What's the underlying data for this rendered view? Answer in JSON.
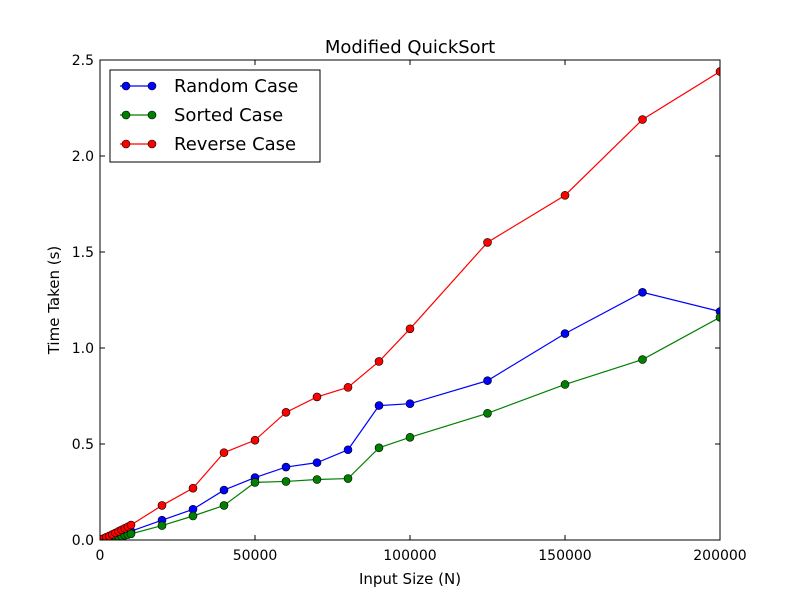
{
  "chart_data": {
    "type": "line",
    "title": "Modified QuickSort",
    "xlabel": "Input Size (N)",
    "ylabel": "Time Taken (s)",
    "xlim": [
      0,
      200000
    ],
    "ylim": [
      0,
      2.5
    ],
    "x_ticks": [
      0,
      50000,
      100000,
      150000,
      200000
    ],
    "x_tick_labels": [
      "0",
      "50000",
      "100000",
      "150000",
      "200000"
    ],
    "y_ticks": [
      0,
      0.5,
      1.0,
      1.5,
      2.0,
      2.5
    ],
    "y_tick_labels": [
      "0.0",
      "0.5",
      "1.0",
      "1.5",
      "2.0",
      "2.5"
    ],
    "grid": false,
    "legend_position": "top-left",
    "x": [
      1000,
      2000,
      3000,
      4000,
      5000,
      6000,
      7000,
      8000,
      9000,
      10000,
      20000,
      30000,
      40000,
      50000,
      60000,
      70000,
      80000,
      90000,
      100000,
      125000,
      150000,
      175000,
      200000
    ],
    "series": [
      {
        "name": "Random Case",
        "color": "#0000ff",
        "values": [
          0.004,
          0.008,
          0.012,
          0.016,
          0.021,
          0.026,
          0.031,
          0.036,
          0.041,
          0.046,
          0.103,
          0.16,
          0.26,
          0.325,
          0.38,
          0.403,
          0.47,
          0.7,
          0.71,
          0.83,
          1.075,
          1.29,
          1.19
        ]
      },
      {
        "name": "Sorted Case",
        "color": "#008000",
        "values": [
          0.003,
          0.006,
          0.009,
          0.012,
          0.015,
          0.018,
          0.021,
          0.025,
          0.028,
          0.032,
          0.075,
          0.125,
          0.18,
          0.3,
          0.305,
          0.315,
          0.32,
          0.48,
          0.535,
          0.66,
          0.81,
          0.94,
          1.16
        ]
      },
      {
        "name": "Reverse Case",
        "color": "#ff0000",
        "values": [
          0.007,
          0.014,
          0.021,
          0.029,
          0.037,
          0.045,
          0.053,
          0.061,
          0.069,
          0.078,
          0.18,
          0.27,
          0.455,
          0.52,
          0.665,
          0.745,
          0.795,
          0.93,
          1.1,
          1.55,
          1.795,
          2.19,
          2.44
        ]
      }
    ]
  }
}
